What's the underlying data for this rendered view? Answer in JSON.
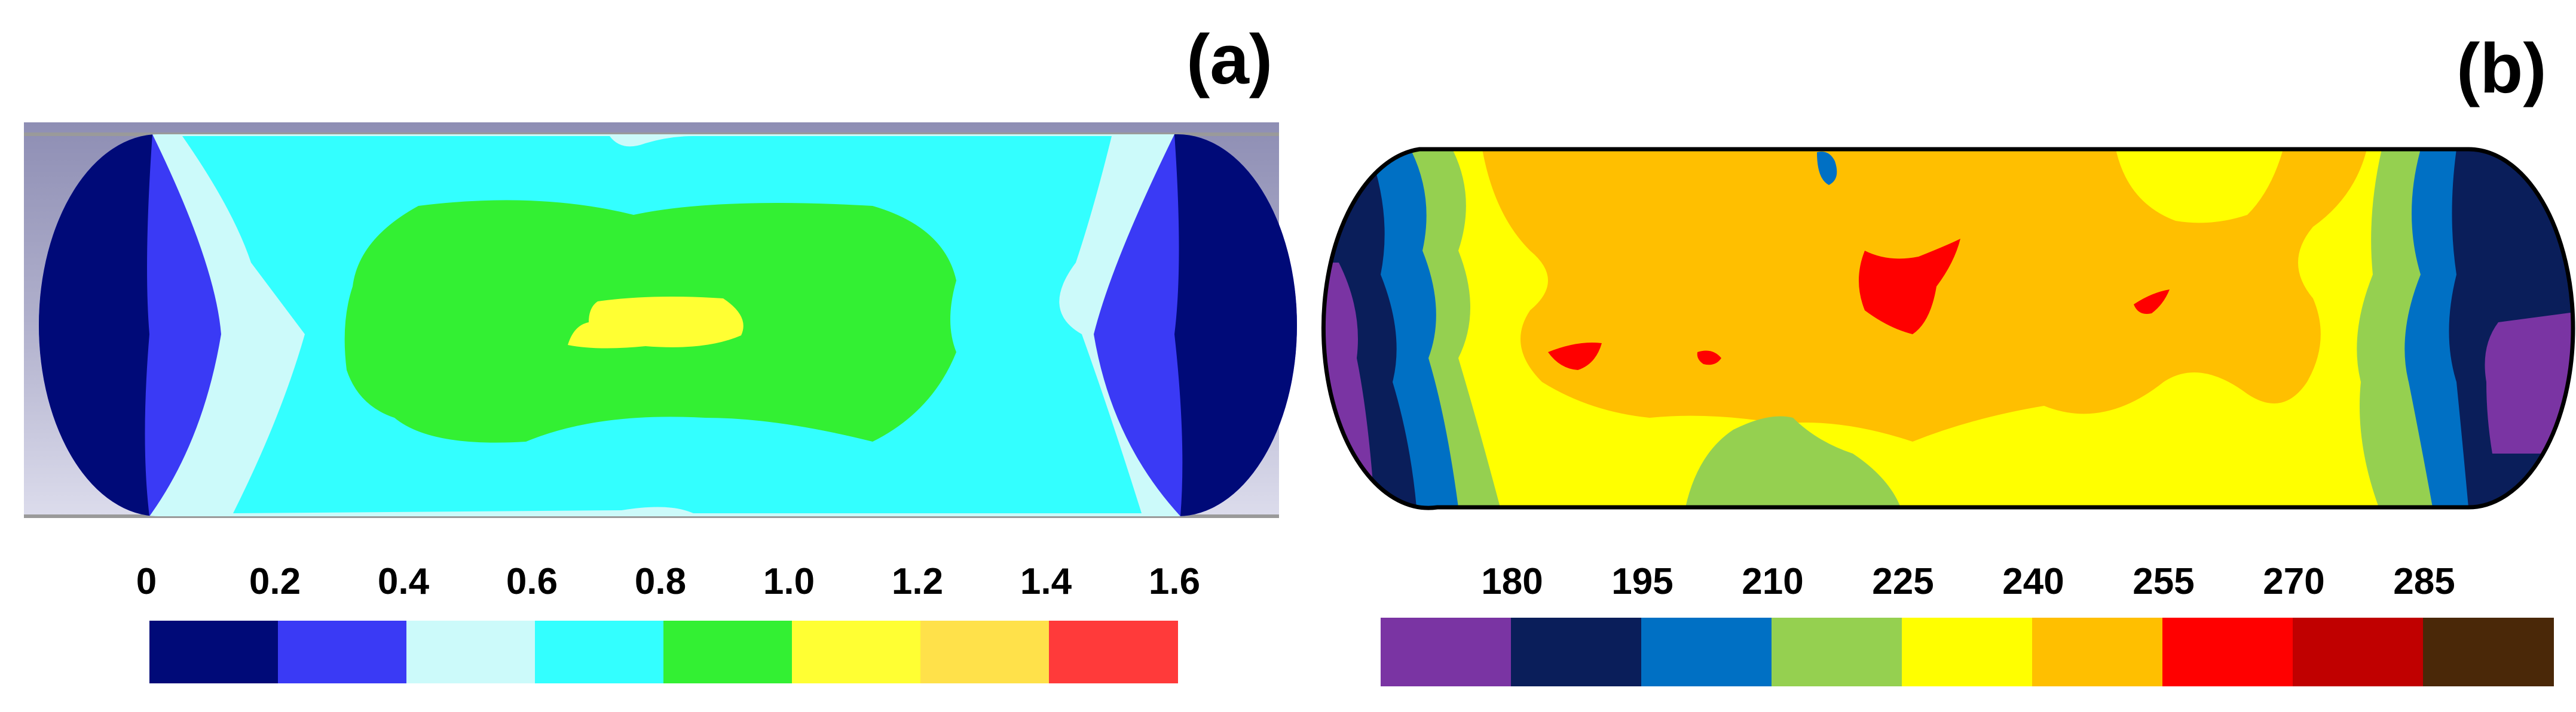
{
  "panels": [
    {
      "label": "(a)",
      "colorbar": {
        "ticks": [
          "0",
          "0.2",
          "0.4",
          "0.6",
          "0.8",
          "1.0",
          "1.2",
          "1.4",
          "1.6"
        ],
        "colors": [
          "#000a78",
          "#3a3af5",
          "#ccfafa",
          "#33ffff",
          "#33f033",
          "#ffff33",
          "#ffe14a",
          "#ff3a3a"
        ]
      }
    },
    {
      "label": "(b)",
      "colorbar": {
        "ticks": [
          "180",
          "195",
          "210",
          "225",
          "240",
          "255",
          "270",
          "285"
        ],
        "colors": [
          "#7a34a3",
          "#0a1e5a",
          "#0070c4",
          "#95d050",
          "#ffff00",
          "#ffbf00",
          "#ff0000",
          "#c00000",
          "#4a2808"
        ]
      }
    }
  ]
}
